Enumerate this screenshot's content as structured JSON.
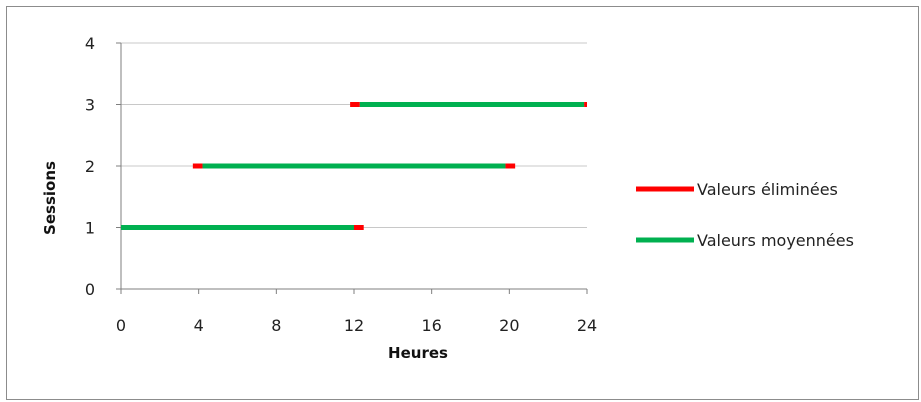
{
  "chart_data": {
    "type": "line",
    "title": "",
    "xlabel": "Heures",
    "ylabel": "Sessions",
    "xlim": [
      0,
      24
    ],
    "ylim": [
      0,
      4
    ],
    "x_ticks": [
      "0",
      "4",
      "8",
      "12",
      "16",
      "20",
      "24"
    ],
    "y_ticks": [
      "0",
      "1",
      "2",
      "3",
      "4"
    ],
    "grid": "horizontal",
    "legend_position": "right",
    "series": [
      {
        "name": "Valeurs éliminées",
        "color": "#ff0000",
        "segments": [
          {
            "session": 1,
            "x": [
              12.0,
              12.5
            ]
          },
          {
            "session": 2,
            "x": [
              3.7,
              4.2
            ]
          },
          {
            "session": 2,
            "x": [
              19.8,
              20.3
            ]
          },
          {
            "session": 3,
            "x": [
              11.8,
              12.3
            ]
          },
          {
            "session": 3,
            "x": [
              23.85,
              24.0
            ]
          }
        ]
      },
      {
        "name": "Valeurs moyennées",
        "color": "#00b050",
        "segments": [
          {
            "session": 1,
            "x": [
              0.0,
              12.0
            ]
          },
          {
            "session": 2,
            "x": [
              4.2,
              19.8
            ]
          },
          {
            "session": 3,
            "x": [
              12.3,
              23.85
            ]
          }
        ]
      }
    ]
  }
}
